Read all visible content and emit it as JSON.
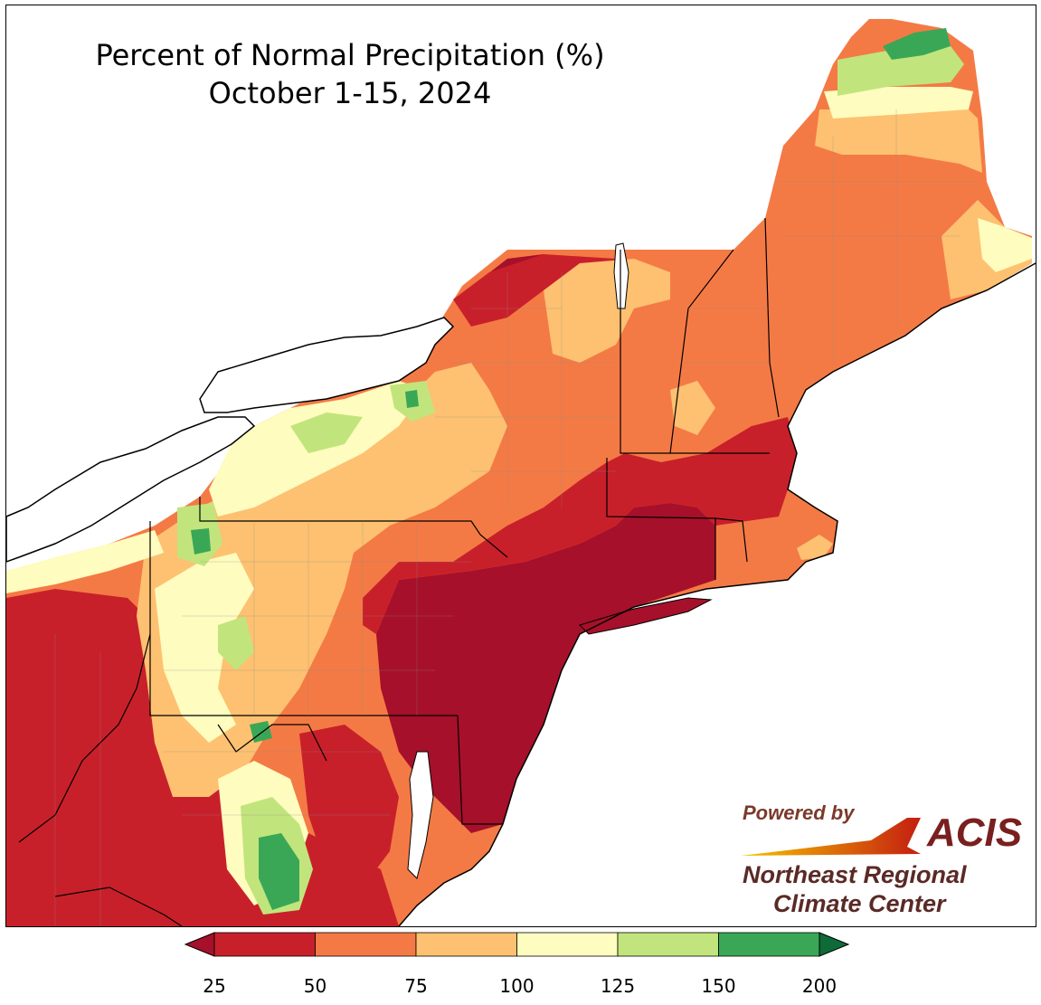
{
  "title": {
    "line1": "Percent of Normal Precipitation (%)",
    "line2": "October 1-15, 2024"
  },
  "logo": {
    "powered_by": "Powered by",
    "brand": "ACIS",
    "org_line1": "Northeast Regional",
    "org_line2": "Climate Center"
  },
  "legend": {
    "ticks": [
      "25",
      "50",
      "75",
      "100",
      "125",
      "150",
      "200"
    ],
    "bins": [
      {
        "range": "25-50",
        "color": "#c8202a"
      },
      {
        "range": "50-75",
        "color": "#f47a45"
      },
      {
        "range": "75-100",
        "color": "#fdc171"
      },
      {
        "range": "100-125",
        "color": "#fefcbe"
      },
      {
        "range": "125-150",
        "color": "#c1e57c"
      },
      {
        "range": "150-200",
        "color": "#3aa757"
      }
    ],
    "under_color": "#a6102a",
    "over_color": "#0e6b38"
  },
  "colors": {
    "below_25": "#a6102a",
    "p25_50": "#c8202a",
    "p50_75": "#f47a45",
    "p75_100": "#fdc171",
    "p100_125": "#fefcbe",
    "p125_150": "#c1e57c",
    "p150_200": "#3aa757"
  }
}
